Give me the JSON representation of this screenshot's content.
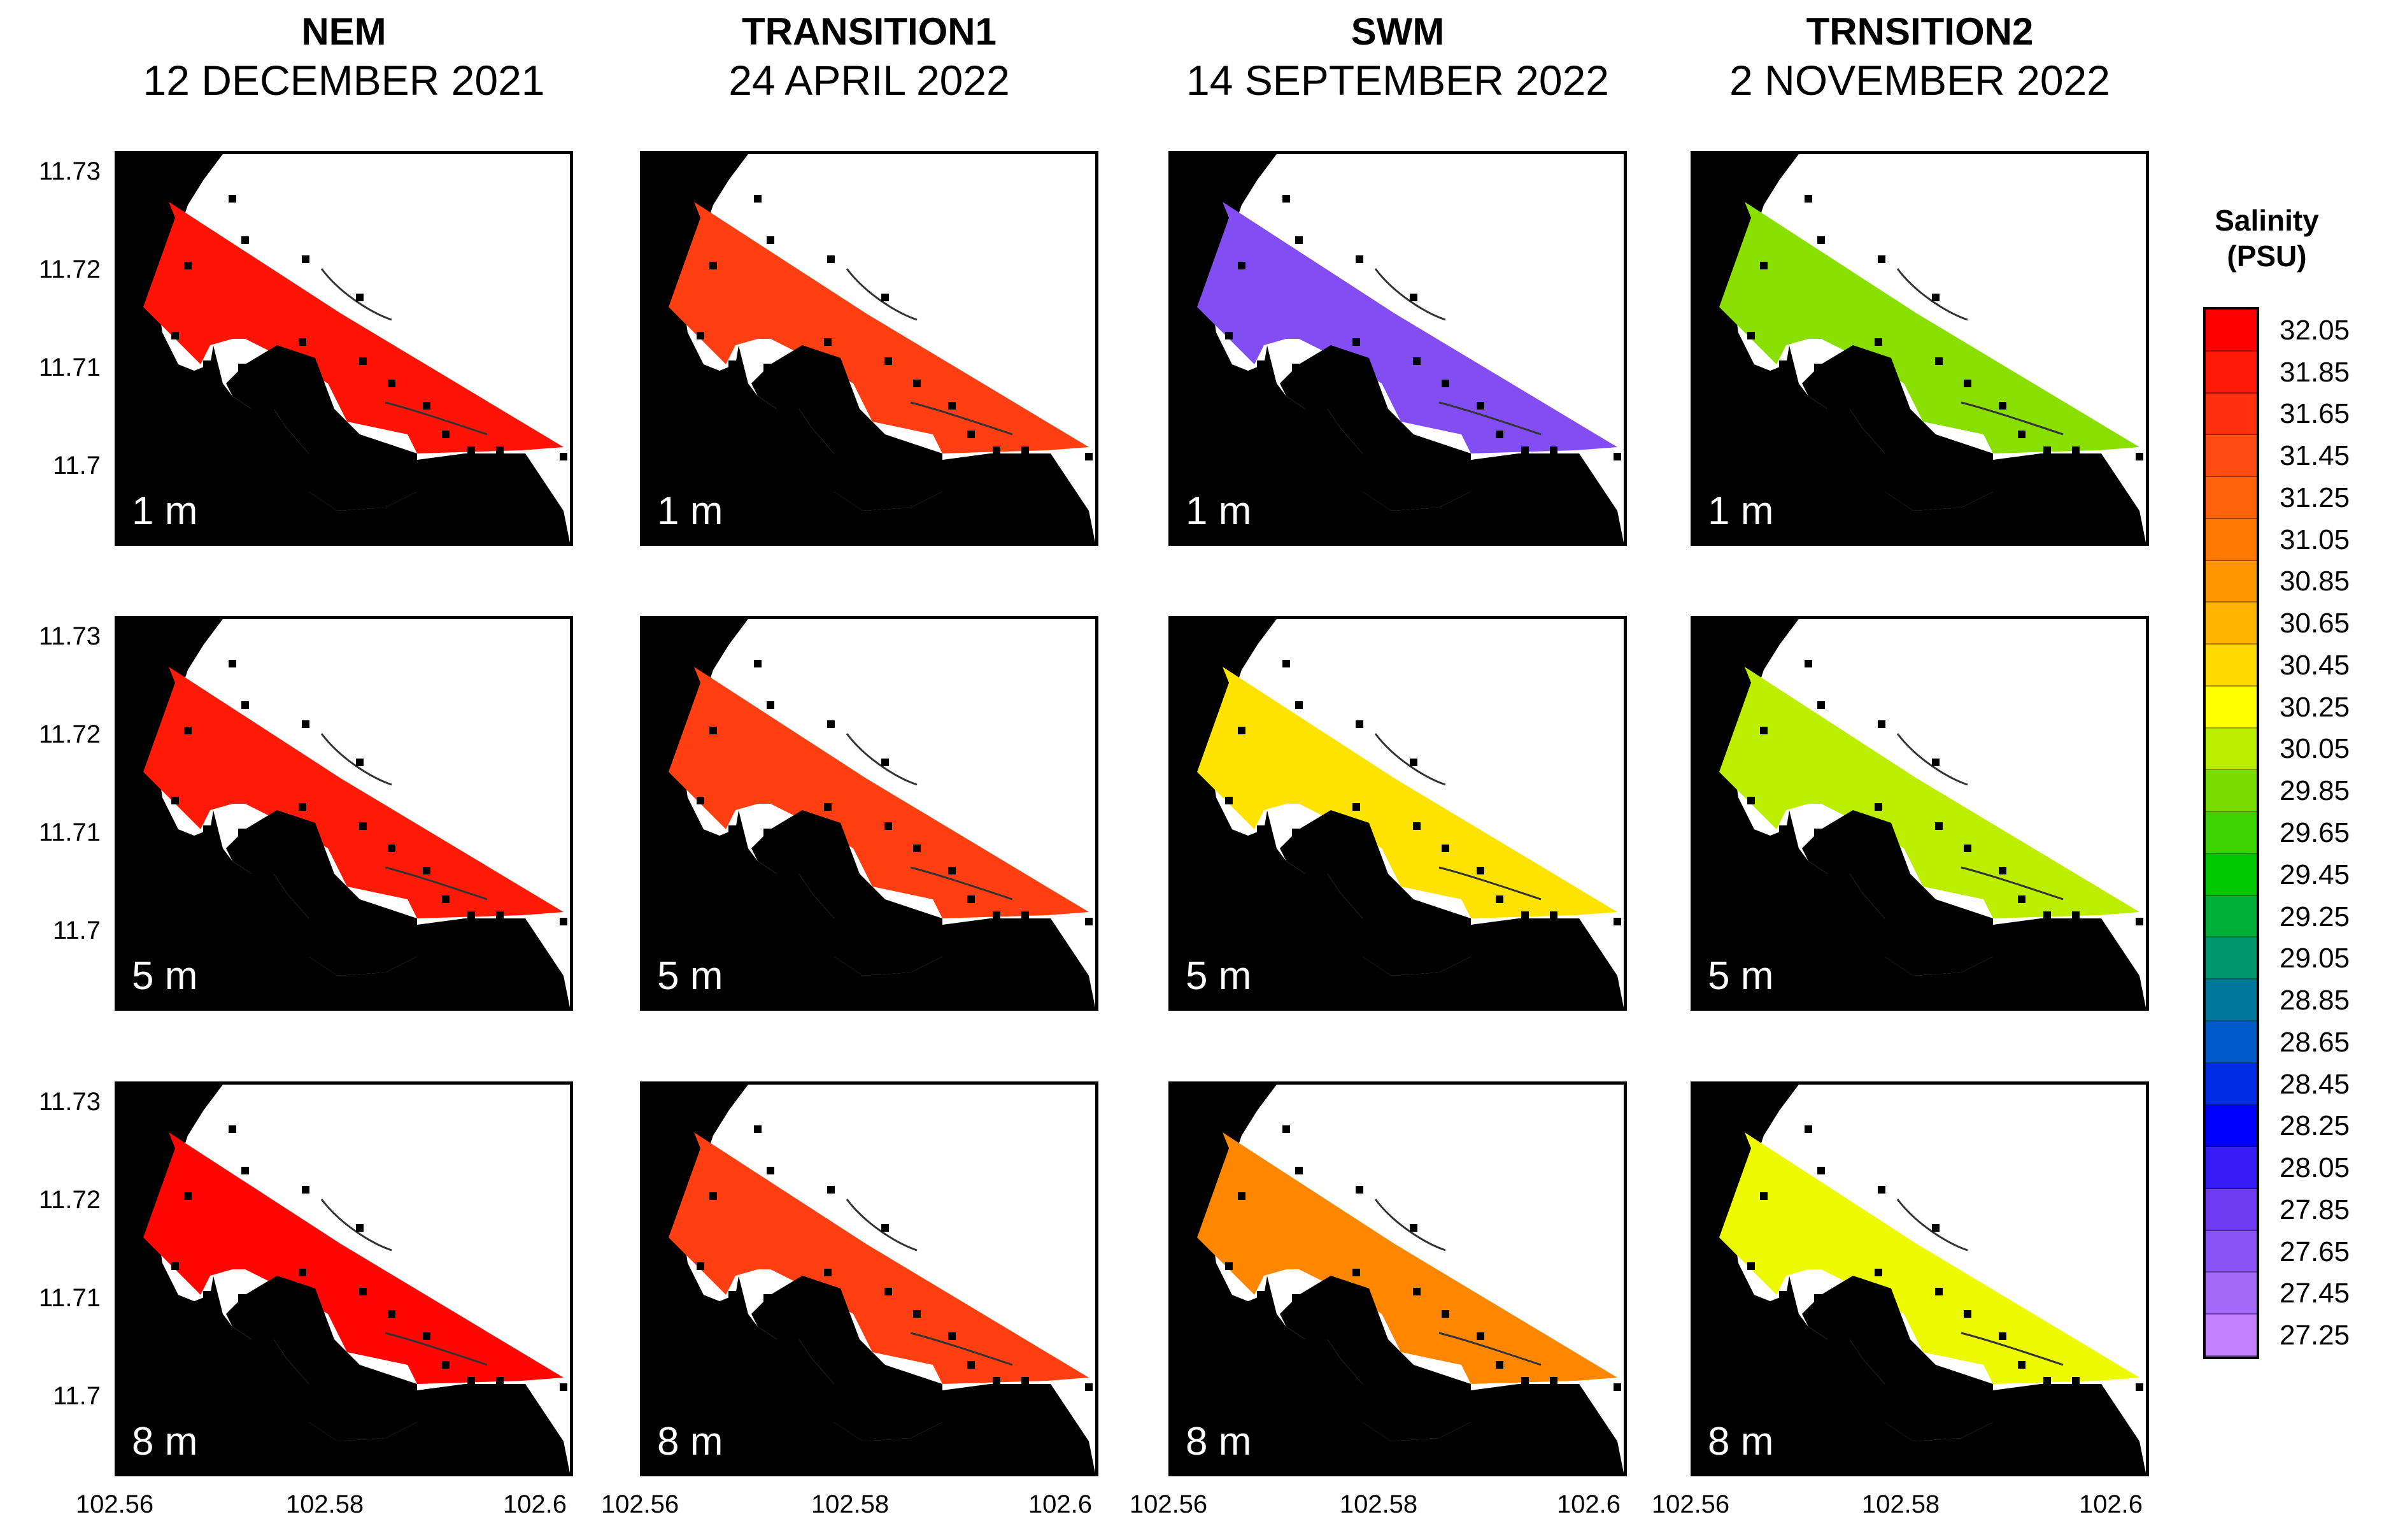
{
  "columns": [
    {
      "season": "NEM",
      "date": "12 DECEMBER 2021"
    },
    {
      "season": "TRANSITION1",
      "date": "24 APRIL 2022"
    },
    {
      "season": "SWM",
      "date": "14 SEPTEMBER 2022"
    },
    {
      "season": "TRNSITION2",
      "date": "2 NOVEMBER 2022"
    }
  ],
  "depths": [
    "1 m",
    "5 m",
    "8 m"
  ],
  "axes": {
    "y_ticks": [
      "11.73",
      "11.72",
      "11.71",
      "11.7"
    ],
    "x_ticks": [
      "102.56",
      "102.58",
      "102.6"
    ]
  },
  "legend": {
    "title_line1": "Salinity",
    "title_line2": "(PSU)",
    "ticks": [
      "32.05",
      "31.85",
      "31.65",
      "31.45",
      "31.25",
      "31.05",
      "30.85",
      "30.65",
      "30.45",
      "30.25",
      "30.05",
      "29.85",
      "29.65",
      "29.45",
      "29.25",
      "29.05",
      "28.85",
      "28.65",
      "28.45",
      "28.25",
      "28.05",
      "27.85",
      "27.65",
      "27.45",
      "27.25"
    ]
  },
  "chart_data": {
    "type": "heatmap",
    "xlabel": "",
    "ylabel": "",
    "xlim": [
      102.56,
      102.605
    ],
    "ylim": [
      11.695,
      11.733
    ],
    "value_range": [
      27.25,
      32.05
    ],
    "colors": {
      "land": "#000000",
      "high": "#ff0000",
      "mid": "#ffff00",
      "low_green": "#00c000",
      "low_blue": "#0000ff",
      "lowest": "#c080ff"
    },
    "panels": [
      {
        "season": "NEM",
        "depth": "1 m",
        "approx_salinity": 31.9
      },
      {
        "season": "NEM",
        "depth": "5 m",
        "approx_salinity": 31.85
      },
      {
        "season": "NEM",
        "depth": "8 m",
        "approx_salinity": 32.0
      },
      {
        "season": "TRANSITION1",
        "depth": "1 m",
        "approx_salinity": 31.55
      },
      {
        "season": "TRANSITION1",
        "depth": "5 m",
        "approx_salinity": 31.55
      },
      {
        "season": "TRANSITION1",
        "depth": "8 m",
        "approx_salinity": 31.55
      },
      {
        "season": "SWM",
        "depth": "1 m",
        "approx_salinity": 27.7
      },
      {
        "season": "SWM",
        "depth": "5 m",
        "approx_salinity": 30.4
      },
      {
        "season": "SWM",
        "depth": "8 m",
        "approx_salinity": 30.95
      },
      {
        "season": "TRNSITION2",
        "depth": "1 m",
        "approx_salinity": 29.9
      },
      {
        "season": "TRNSITION2",
        "depth": "5 m",
        "approx_salinity": 30.05
      },
      {
        "season": "TRNSITION2",
        "depth": "8 m",
        "approx_salinity": 30.2
      }
    ]
  }
}
